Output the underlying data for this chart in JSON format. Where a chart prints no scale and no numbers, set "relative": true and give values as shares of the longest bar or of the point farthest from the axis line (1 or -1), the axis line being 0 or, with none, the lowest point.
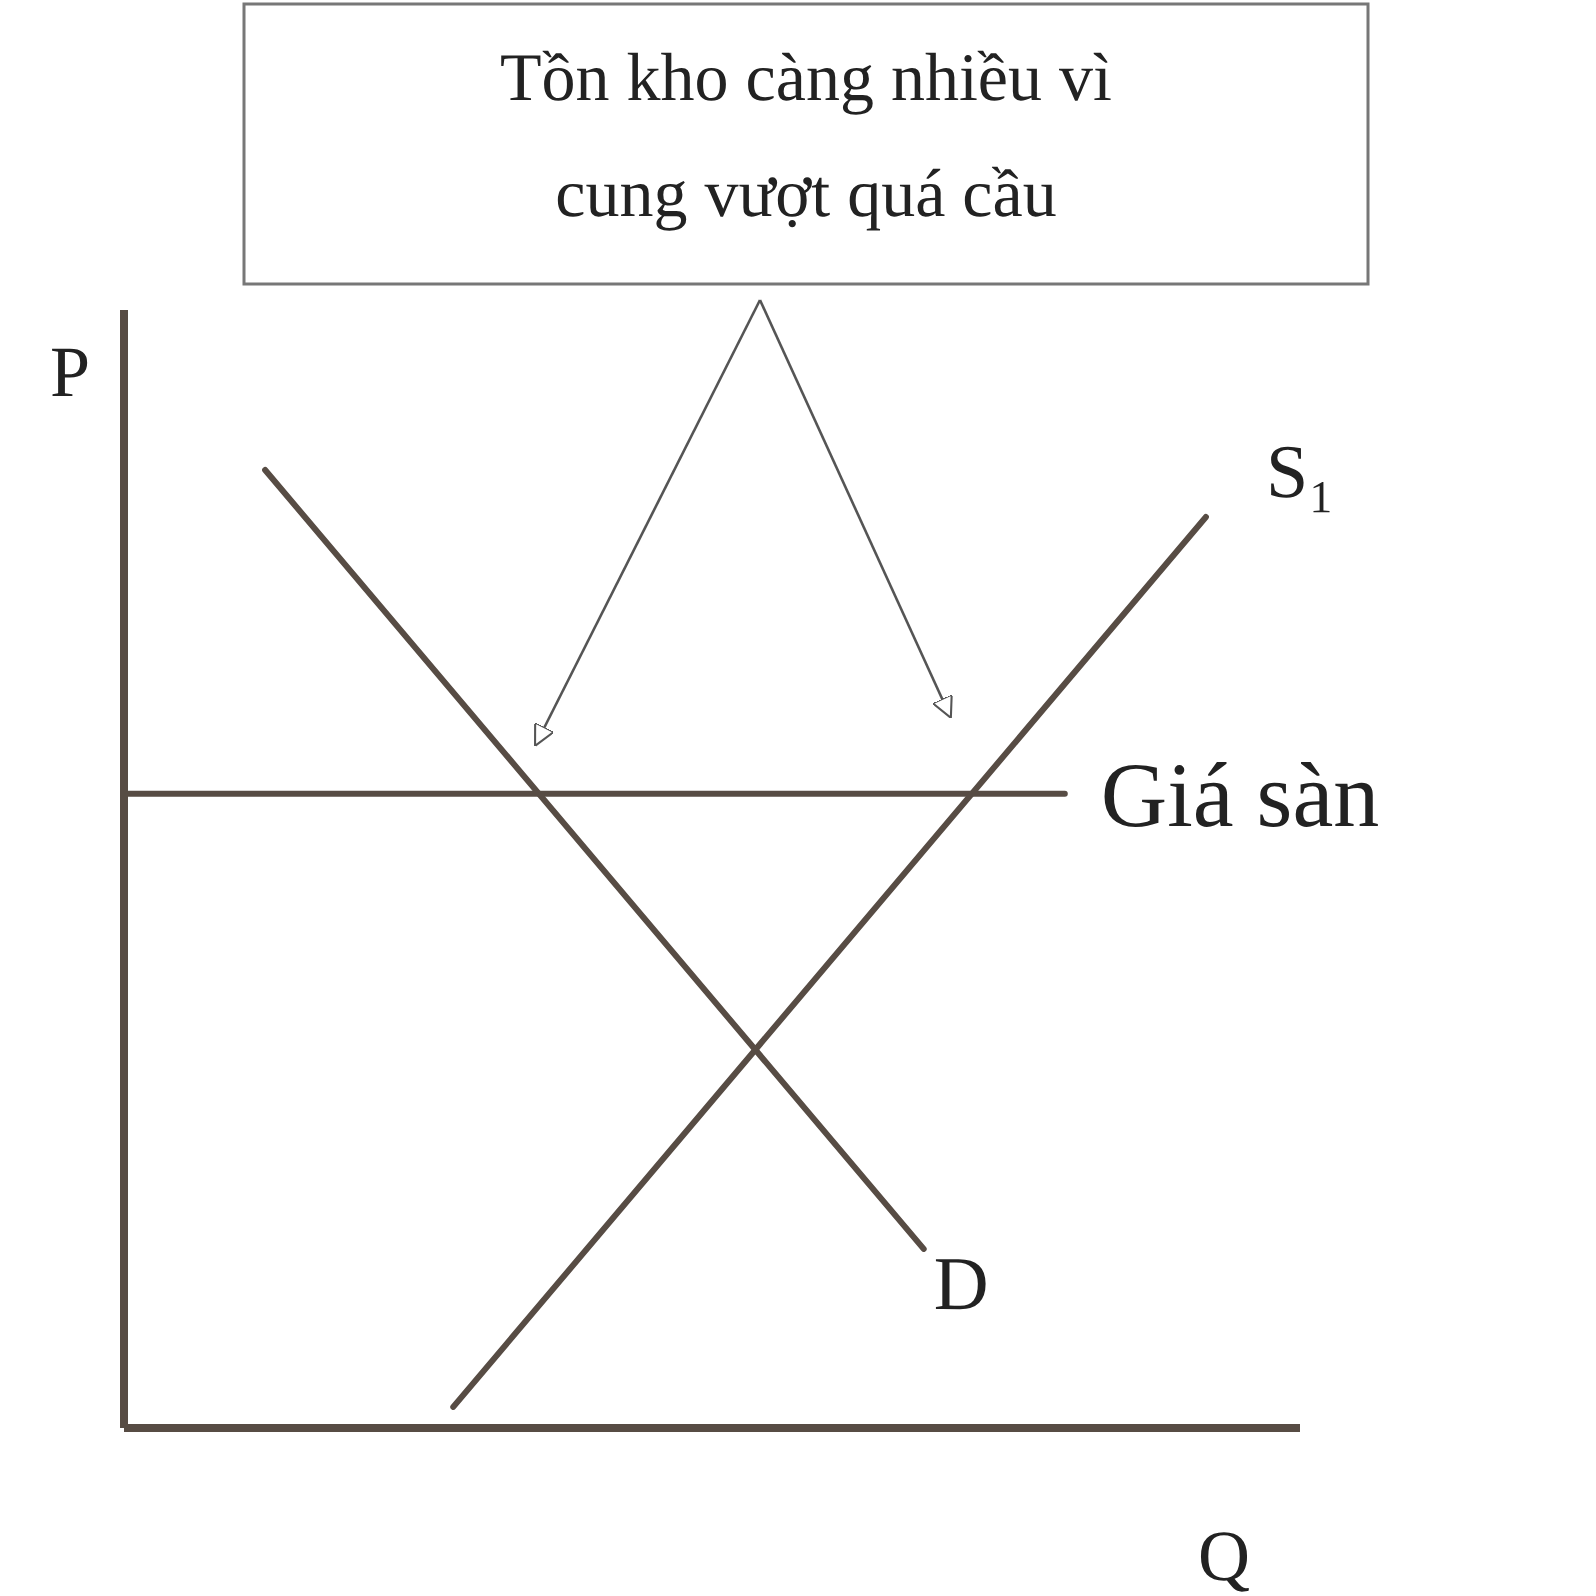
{
  "chart_data": {
    "type": "line",
    "relative": true,
    "xlabel": "Q",
    "ylabel": "P",
    "categories": [
      null,
      null,
      null,
      null,
      null,
      null,
      null,
      null,
      null,
      null,
      null,
      null,
      null,
      null,
      null,
      null,
      null,
      null,
      null,
      null,
      null,
      null,
      null,
      null,
      null
    ],
    "series": [
      {
        "name": "D",
        "color": "#574c44",
        "values": [
          null,
          null,
          null,
          1,
          null,
          null,
          null,
          null,
          null,
          null,
          null,
          null,
          null,
          null,
          null,
          null,
          null,
          0.187,
          null,
          null,
          null,
          null,
          null,
          null,
          null
        ]
      },
      {
        "name": "S₁",
        "color": "#574c44",
        "values": [
          null,
          null,
          null,
          null,
          null,
          null,
          null,
          0.022,
          null,
          null,
          null,
          null,
          null,
          null,
          null,
          null,
          null,
          null,
          null,
          null,
          null,
          null,
          null,
          0.951,
          null
        ]
      },
      {
        "name": "Giá sàn",
        "color": "#574c44",
        "values": [
          0.662,
          null,
          null,
          null,
          null,
          null,
          null,
          null,
          null,
          null,
          null,
          null,
          null,
          null,
          null,
          null,
          null,
          null,
          null,
          null,
          0.662,
          null,
          null,
          null,
          null
        ]
      }
    ],
    "annotations": [
      "Tồn kho càng nhiều vì cung vượt quá cầu"
    ]
  }
}
